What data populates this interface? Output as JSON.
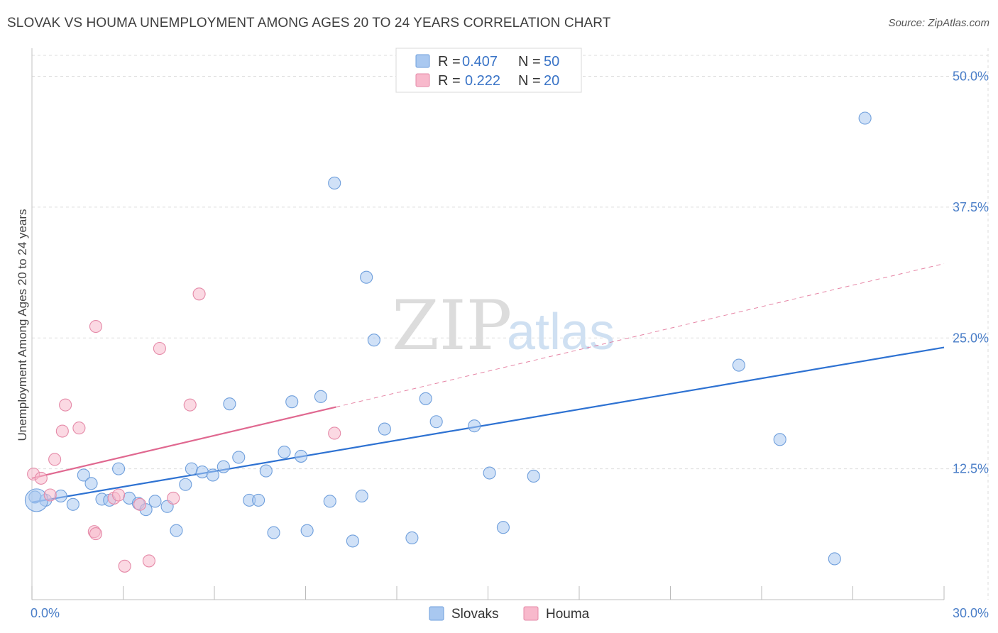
{
  "title": "SLOVAK VS HOUMA UNEMPLOYMENT AMONG AGES 20 TO 24 YEARS CORRELATION CHART",
  "source": "Source: ZipAtlas.com",
  "watermark": {
    "zip": "ZIP",
    "atlas": "atlas"
  },
  "colors": {
    "slovak_fill": "#a9c8f0",
    "slovak_stroke": "#6f9fdc",
    "slovak_line": "#2e72d2",
    "houma_fill": "#f8b9cc",
    "houma_stroke": "#e58aa8",
    "houma_line": "#e06890",
    "grid": "#dddddd",
    "axis_text": "#4a7ec8"
  },
  "legend": {
    "rows": [
      {
        "r_label": "R =",
        "r_value": "0.407",
        "n_label": "N =",
        "n_value": "50"
      },
      {
        "r_label": "R =",
        "r_value": "0.222",
        "n_label": "N =",
        "n_value": "20"
      }
    ]
  },
  "chart_data": {
    "type": "scatter",
    "title": "SLOVAK VS HOUMA UNEMPLOYMENT AMONG AGES 20 TO 24 YEARS CORRELATION CHART",
    "xlabel": "",
    "ylabel": "Unemployment Among Ages 20 to 24 years",
    "xlim": [
      0,
      30
    ],
    "ylim": [
      0,
      52
    ],
    "x_tick_labels": [
      "0.0%",
      "30.0%"
    ],
    "y_ticks": [
      12.5,
      25.0,
      37.5,
      50.0
    ],
    "y_tick_labels": [
      "12.5%",
      "25.0%",
      "37.5%",
      "50.0%"
    ],
    "grid": true,
    "legend_position": "top-center",
    "series": [
      {
        "name": "Slovaks",
        "points": [
          [
            0.1,
            9.8
          ],
          [
            0.45,
            9.5
          ],
          [
            0.95,
            9.9
          ],
          [
            1.35,
            9.1
          ],
          [
            1.7,
            11.9
          ],
          [
            1.95,
            11.1
          ],
          [
            2.3,
            9.6
          ],
          [
            2.55,
            9.5
          ],
          [
            2.85,
            12.5
          ],
          [
            3.2,
            9.7
          ],
          [
            3.5,
            9.2
          ],
          [
            3.75,
            8.6
          ],
          [
            4.05,
            9.4
          ],
          [
            4.45,
            8.9
          ],
          [
            4.75,
            6.6
          ],
          [
            5.05,
            11.0
          ],
          [
            5.25,
            12.5
          ],
          [
            5.6,
            12.2
          ],
          [
            5.95,
            11.9
          ],
          [
            6.3,
            12.7
          ],
          [
            6.5,
            18.7
          ],
          [
            6.8,
            13.6
          ],
          [
            7.15,
            9.5
          ],
          [
            7.45,
            9.5
          ],
          [
            7.7,
            12.3
          ],
          [
            7.95,
            6.4
          ],
          [
            8.3,
            14.1
          ],
          [
            8.55,
            18.9
          ],
          [
            8.85,
            13.7
          ],
          [
            9.05,
            6.6
          ],
          [
            9.5,
            19.4
          ],
          [
            9.8,
            9.4
          ],
          [
            9.95,
            39.8
          ],
          [
            10.55,
            5.6
          ],
          [
            10.85,
            9.9
          ],
          [
            11.0,
            30.8
          ],
          [
            11.25,
            24.8
          ],
          [
            11.6,
            16.3
          ],
          [
            12.5,
            5.9
          ],
          [
            12.95,
            19.2
          ],
          [
            13.3,
            17.0
          ],
          [
            14.55,
            16.6
          ],
          [
            15.05,
            12.1
          ],
          [
            15.5,
            6.9
          ],
          [
            16.5,
            11.8
          ],
          [
            23.25,
            22.4
          ],
          [
            24.6,
            15.3
          ],
          [
            26.4,
            3.9
          ],
          [
            27.4,
            46.0
          ],
          [
            0.15,
            9.5
          ]
        ],
        "trendline": {
          "x0": 0,
          "y0": 9.3,
          "x1": 30,
          "y1": 24.1
        }
      },
      {
        "name": "Houma",
        "points": [
          [
            0.05,
            12.0
          ],
          [
            0.3,
            11.6
          ],
          [
            0.6,
            10.0
          ],
          [
            1.0,
            16.1
          ],
          [
            1.1,
            18.6
          ],
          [
            1.55,
            16.4
          ],
          [
            0.75,
            13.4
          ],
          [
            2.05,
            6.5
          ],
          [
            2.1,
            6.3
          ],
          [
            2.1,
            26.1
          ],
          [
            2.7,
            9.7
          ],
          [
            2.85,
            10.0
          ],
          [
            3.05,
            3.2
          ],
          [
            3.55,
            9.1
          ],
          [
            3.85,
            3.7
          ],
          [
            4.2,
            24.0
          ],
          [
            4.65,
            9.7
          ],
          [
            5.2,
            18.6
          ],
          [
            5.5,
            29.2
          ],
          [
            9.95,
            15.9
          ]
        ],
        "trendline": {
          "x0": 0,
          "y0": 11.6,
          "x1": 10.0,
          "y1": 18.4,
          "dashed_to_x": 30,
          "dashed_to_y": 32.1
        }
      }
    ]
  },
  "bottom_legend": {
    "items": [
      "Slovaks",
      "Houma"
    ]
  }
}
